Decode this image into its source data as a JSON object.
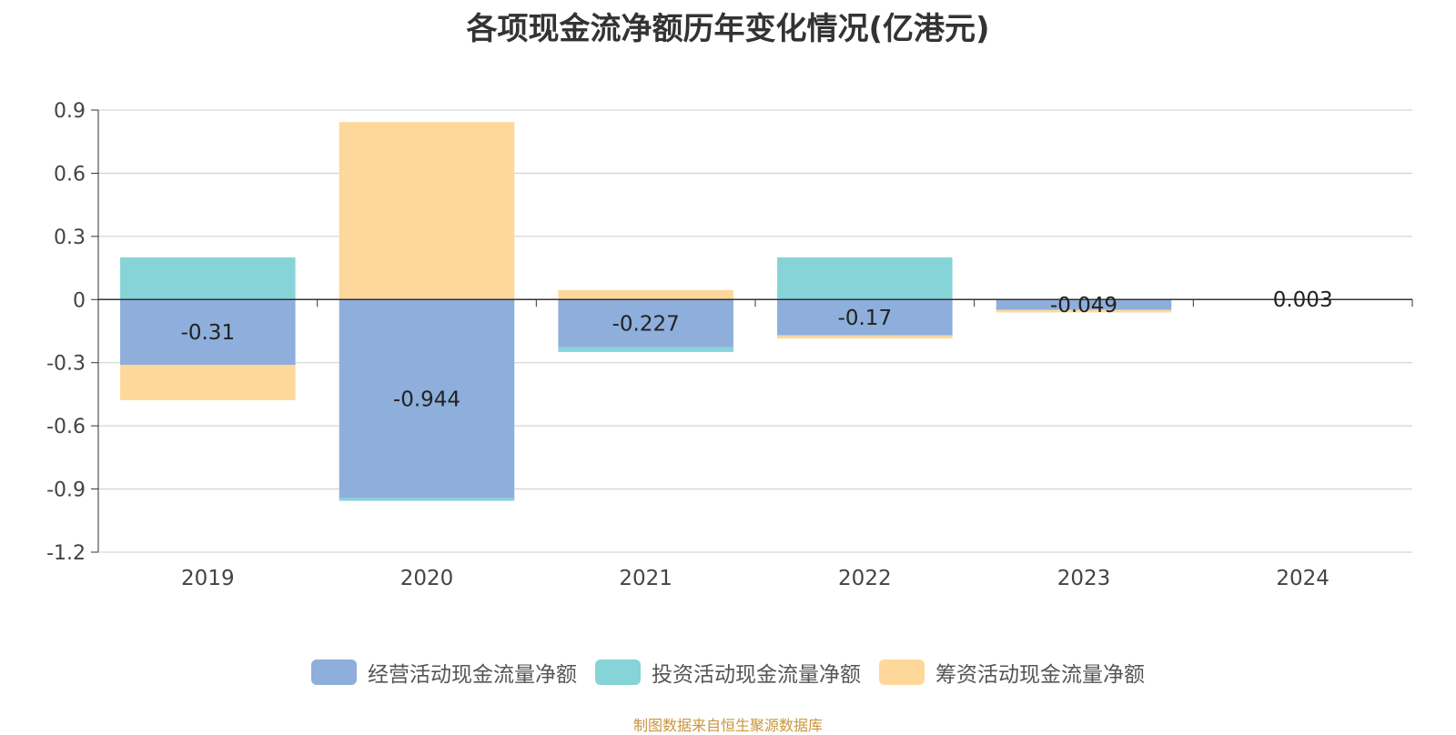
{
  "chart_data": {
    "type": "bar",
    "stacked": true,
    "title": "各项现金流净额历年变化情况(亿港元)",
    "categories": [
      "2019",
      "2020",
      "2021",
      "2022",
      "2023",
      "2024"
    ],
    "ylim": [
      -1.2,
      0.9
    ],
    "yticks": [
      0.9,
      0.6,
      0.3,
      0,
      -0.3,
      -0.6,
      -0.9,
      -1.2
    ],
    "ytick_labels": [
      "0.9",
      "0.6",
      "0.3",
      "0",
      "-0.3",
      "-0.6",
      "-0.9",
      "-1.2"
    ],
    "grid": true,
    "legend_position": "bottom",
    "series": [
      {
        "name": "经营活动现金流量净额",
        "color": "#8eaedb",
        "values": [
          -0.31,
          -0.944,
          -0.227,
          -0.17,
          -0.049,
          0.003
        ],
        "labels": [
          "-0.31",
          "-0.944",
          "-0.227",
          "-0.17",
          "-0.049",
          "0.003"
        ]
      },
      {
        "name": "投资活动现金流量净额",
        "color": "#86d4d8",
        "values": [
          0.2,
          -0.012,
          -0.022,
          0.2,
          0,
          0
        ]
      },
      {
        "name": "筹资活动现金流量净额",
        "color": "#fdd89a",
        "values": [
          -0.168,
          0.843,
          0.045,
          -0.015,
          -0.012,
          0
        ]
      }
    ]
  },
  "source_note": "制图数据来自恒生聚源数据库"
}
